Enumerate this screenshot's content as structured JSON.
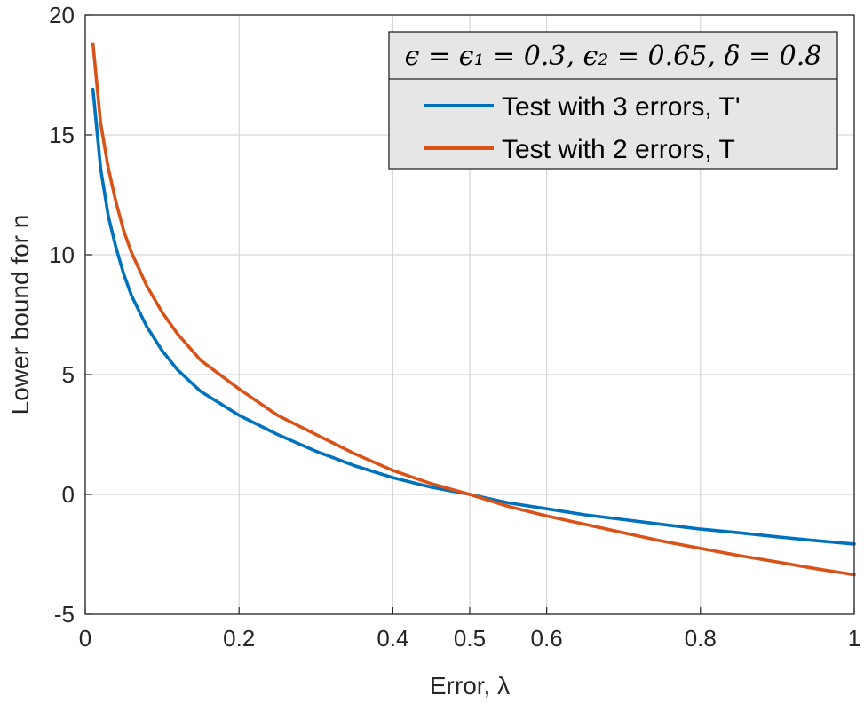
{
  "chart_data": {
    "type": "line",
    "xlabel": "Error, λ",
    "ylabel": "Lower bound for n",
    "xlim": [
      0,
      1
    ],
    "ylim": [
      -5,
      20
    ],
    "xticks": [
      0,
      0.2,
      0.4,
      0.5,
      0.6,
      0.8,
      1
    ],
    "yticks": [
      -5,
      0,
      5,
      10,
      15,
      20
    ],
    "xtick_labels": [
      "0",
      "0.2",
      "0.4",
      "0.5",
      "0.6",
      "0.8",
      "1"
    ],
    "ytick_labels": [
      "-5",
      "0",
      "5",
      "10",
      "15",
      "20"
    ],
    "grid": true,
    "legend": {
      "placement": "top-right",
      "title": "ϵ = ϵ₁ = 0.3, ϵ₂ = 0.65, δ = 0.8"
    },
    "series": [
      {
        "name": "Test with 3 errors, T'",
        "color": "#0072BD",
        "x": [
          0.01,
          0.02,
          0.03,
          0.04,
          0.05,
          0.06,
          0.08,
          0.1,
          0.12,
          0.15,
          0.2,
          0.25,
          0.3,
          0.35,
          0.4,
          0.45,
          0.5,
          0.55,
          0.6,
          0.65,
          0.7,
          0.75,
          0.8,
          0.85,
          0.9,
          0.95,
          1.0
        ],
        "values": [
          16.9,
          13.6,
          11.6,
          10.3,
          9.2,
          8.3,
          7.0,
          6.0,
          5.2,
          4.3,
          3.3,
          2.5,
          1.8,
          1.2,
          0.7,
          0.3,
          0.0,
          -0.35,
          -0.6,
          -0.85,
          -1.05,
          -1.25,
          -1.45,
          -1.6,
          -1.77,
          -1.93,
          -2.07
        ]
      },
      {
        "name": "Test with 2 errors, T",
        "color": "#D95319",
        "x": [
          0.01,
          0.02,
          0.03,
          0.04,
          0.05,
          0.06,
          0.08,
          0.1,
          0.12,
          0.15,
          0.2,
          0.25,
          0.3,
          0.35,
          0.4,
          0.45,
          0.5,
          0.55,
          0.6,
          0.65,
          0.7,
          0.75,
          0.8,
          0.85,
          0.9,
          0.95,
          1.0
        ],
        "values": [
          18.8,
          15.5,
          13.6,
          12.2,
          11.0,
          10.1,
          8.7,
          7.6,
          6.7,
          5.6,
          4.4,
          3.3,
          2.5,
          1.7,
          1.0,
          0.45,
          0.0,
          -0.5,
          -0.9,
          -1.25,
          -1.6,
          -1.95,
          -2.25,
          -2.55,
          -2.82,
          -3.1,
          -3.35
        ]
      }
    ]
  }
}
